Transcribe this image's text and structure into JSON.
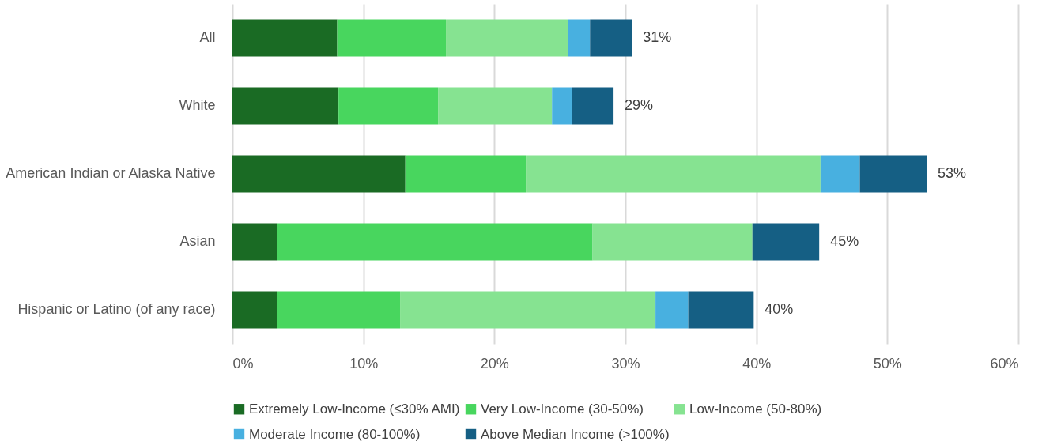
{
  "chart_data": {
    "type": "bar",
    "orientation": "horizontal",
    "stacked": true,
    "categories": [
      "All",
      "White",
      "American Indian or Alaska Native",
      "Asian",
      "Hispanic or Latino (of any race)"
    ],
    "series": [
      {
        "name": "Extremely Low-Income (≤30% AMI)",
        "color": "#1a6b24",
        "values": [
          8.0,
          8.1,
          13.2,
          3.4,
          3.4
        ]
      },
      {
        "name": "Very Low-Income (30-50%)",
        "color": "#48d65e",
        "values": [
          8.3,
          7.6,
          9.2,
          24.1,
          9.4
        ]
      },
      {
        "name": "Low-Income (50-80%)",
        "color": "#86e391",
        "values": [
          9.3,
          8.7,
          22.5,
          12.2,
          19.5
        ]
      },
      {
        "name": "Moderate Income (80-100%)",
        "color": "#48b0e0",
        "values": [
          1.7,
          1.5,
          3.0,
          null,
          2.5
        ]
      },
      {
        "name": "Above Median Income (>100%)",
        "color": "#155f84",
        "values": [
          3.2,
          3.2,
          5.1,
          5.1,
          5.0
        ]
      }
    ],
    "totals": [
      "31%",
      "29%",
      "53%",
      "45%",
      "40%"
    ],
    "xlim": [
      0,
      60
    ],
    "xticks": [
      {
        "value": 0,
        "label": "0%"
      },
      {
        "value": 10,
        "label": "10%"
      },
      {
        "value": 20,
        "label": "20%"
      },
      {
        "value": 30,
        "label": "30%"
      },
      {
        "value": 40,
        "label": "40%"
      },
      {
        "value": 50,
        "label": "50%"
      },
      {
        "value": 60,
        "label": "60%"
      }
    ],
    "grid": "x",
    "legend": "bottom"
  }
}
